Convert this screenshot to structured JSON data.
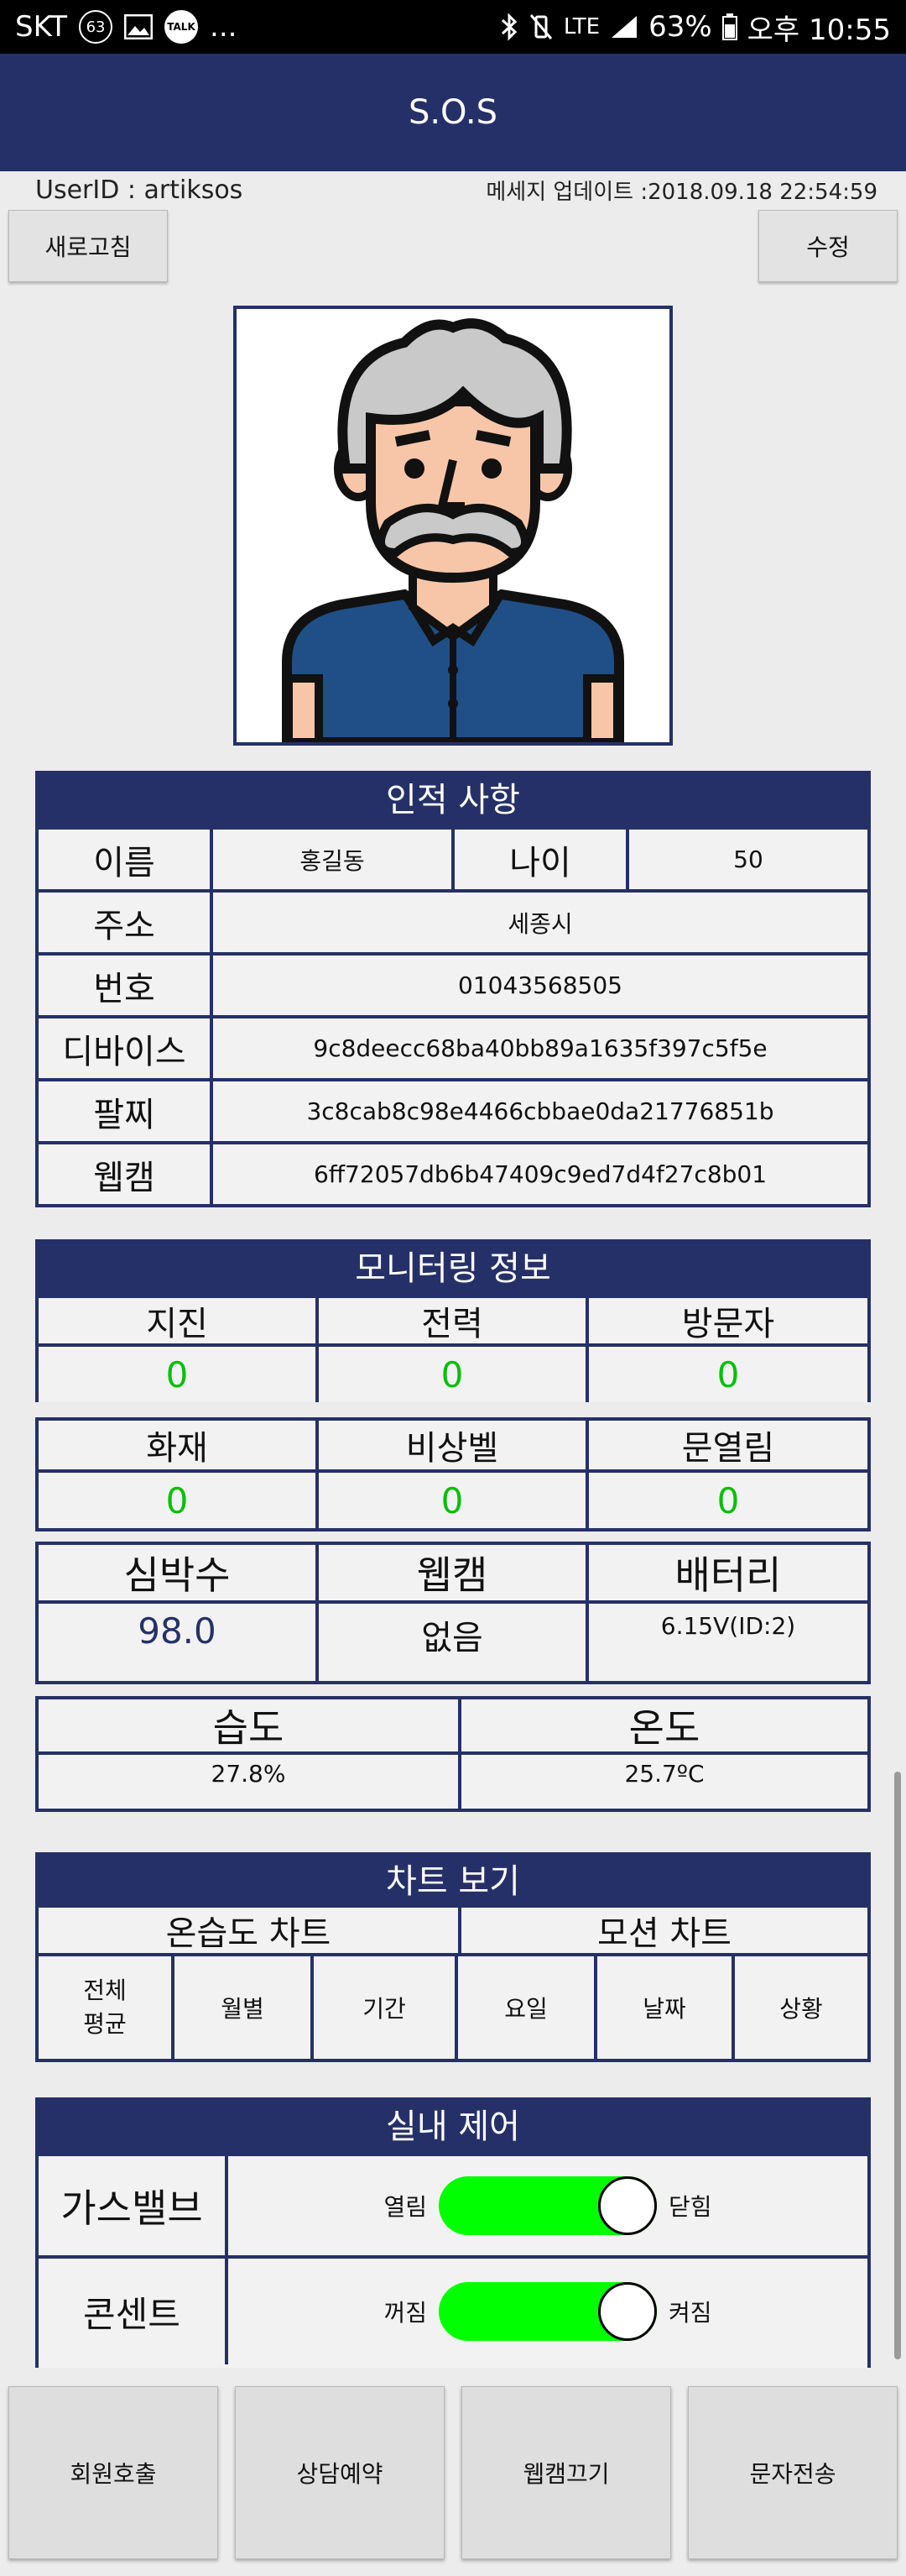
{
  "status_bar": {
    "carrier": "SKT",
    "notif_count": "63",
    "talk_label": "TALK",
    "more": "...",
    "lte": "LTE",
    "battery": "63%",
    "time": "오후 10:55"
  },
  "app": {
    "title": "S.O.S"
  },
  "info": {
    "user_id": "UserID : artiksos",
    "update": "메세지 업데이트 :2018.09.18 22:54:59"
  },
  "buttons": {
    "refresh": "새로고침",
    "edit": "수정"
  },
  "personal": {
    "title": "인적 사항",
    "name_label": "이름",
    "name": "홍길동",
    "age_label": "나이",
    "age": "50",
    "address_label": "주소",
    "address": "세종시",
    "phone_label": "번호",
    "phone": "01043568505",
    "device_label": "디바이스",
    "device": "9c8deecc68ba40bb89a1635f397c5f5e",
    "band_label": "팔찌",
    "band": "3c8cab8c98e4466cbbae0da21776851b",
    "webcam_label": "웹캠",
    "webcam": "6ff72057db6b47409c9ed7d4f27c8b01"
  },
  "monitor": {
    "title": "모니터링 정보",
    "quake_label": "지진",
    "quake": "0",
    "power_label": "전력",
    "power": "0",
    "visitor_label": "방문자",
    "visitor": "0",
    "fire_label": "화재",
    "fire": "0",
    "bell_label": "비상벨",
    "bell": "0",
    "door_label": "문열림",
    "door": "0",
    "heart_label": "심박수",
    "heart": "98.0",
    "cam_label": "웹캠",
    "cam": "없음",
    "battery_label": "배터리",
    "battery": "6.15V(ID:2)",
    "humidity_label": "습도",
    "humidity": "27.8%",
    "temp_label": "온도",
    "temp": "25.7ºC"
  },
  "charts": {
    "title": "차트 보기",
    "temp_chart": "온습도 차트",
    "motion_chart": "모션 차트",
    "all_avg_1": "전체",
    "all_avg_2": "평균",
    "monthly": "월별",
    "period": "기간",
    "weekday": "요일",
    "date": "날짜",
    "status": "상황"
  },
  "control": {
    "title": "실내 제어",
    "gas_label": "가스밸브",
    "gas_left": "열림",
    "gas_right": "닫힘",
    "gas_on": true,
    "outlet_label": "콘센트",
    "outlet_left": "꺼짐",
    "outlet_right": "켜짐",
    "outlet_on": true
  },
  "bottom": {
    "call": "회원호출",
    "consult": "상담예약",
    "cam_off": "웹캠끄기",
    "sms": "문자전송"
  },
  "colors": {
    "navy": "#263068",
    "green": "#00c000",
    "toggle": "#00ff00"
  }
}
